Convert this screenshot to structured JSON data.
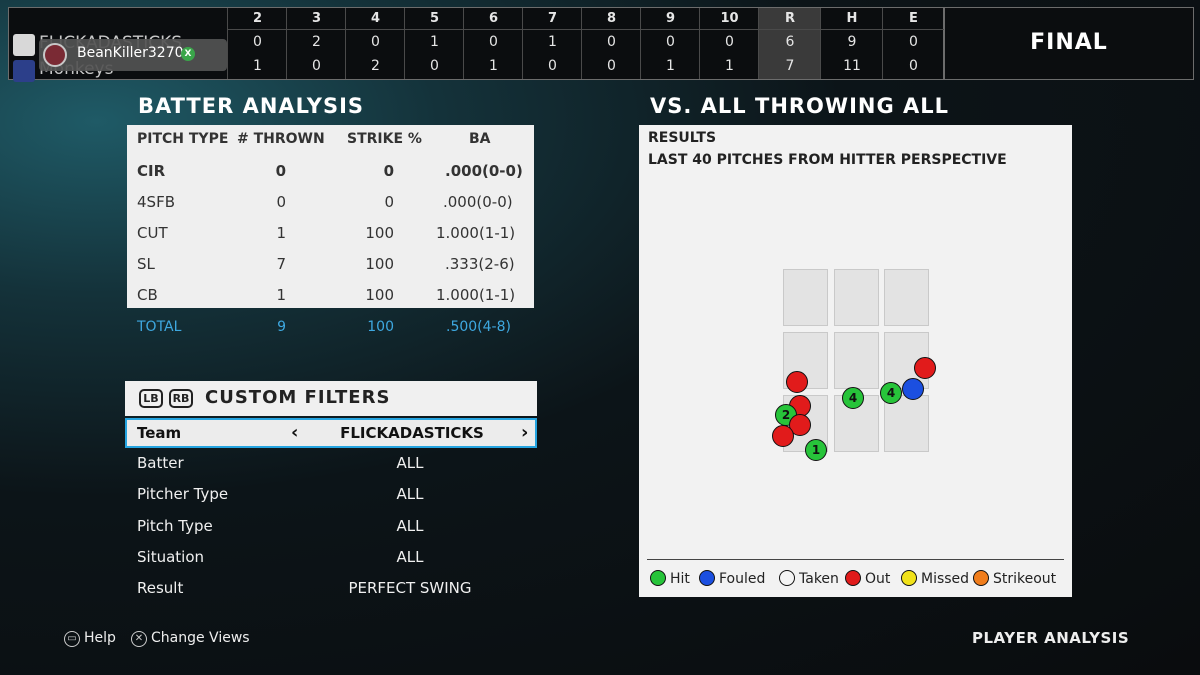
{
  "scoreboard": {
    "innings": [
      "2",
      "3",
      "4",
      "5",
      "6",
      "7",
      "8",
      "9",
      "10",
      "R",
      "H",
      "E"
    ],
    "away": {
      "name": "FLICKADASTICKS",
      "scores": [
        "0",
        "2",
        "0",
        "1",
        "0",
        "1",
        "0",
        "0",
        "0",
        "6",
        "9",
        "0"
      ]
    },
    "home": {
      "name": "Monkeys",
      "scores": [
        "1",
        "0",
        "2",
        "0",
        "1",
        "0",
        "0",
        "1",
        "1",
        "7",
        "11",
        "0"
      ]
    },
    "user": {
      "gamertag": "BeanKiller3270"
    },
    "status": "FINAL"
  },
  "batter_analysis": {
    "heading": "BATTER ANALYSIS",
    "columns": [
      "PITCH TYPE",
      "# THROWN",
      "STRIKE %",
      "BA"
    ],
    "rows": [
      {
        "type": "CIR",
        "thrown": "0",
        "strike": "0",
        "ba": ".000(0-0)"
      },
      {
        "type": "4SFB",
        "thrown": "0",
        "strike": "0",
        "ba": ".000(0-0)"
      },
      {
        "type": "CUT",
        "thrown": "1",
        "strike": "100",
        "ba": "1.000(1-1)"
      },
      {
        "type": "SL",
        "thrown": "7",
        "strike": "100",
        "ba": ".333(2-6)"
      },
      {
        "type": "CB",
        "thrown": "1",
        "strike": "100",
        "ba": "1.000(1-1)"
      }
    ],
    "total": {
      "type": "TOTAL",
      "thrown": "9",
      "strike": "100",
      "ba": ".500(4-8)"
    }
  },
  "filters": {
    "buttons": [
      "LB",
      "RB"
    ],
    "title": "CUSTOM FILTERS",
    "team": {
      "label": "Team",
      "value": "FLICKADASTICKS"
    },
    "rows": [
      {
        "label": "Batter",
        "value": "ALL"
      },
      {
        "label": "Pitcher Type",
        "value": "ALL"
      },
      {
        "label": "Pitch Type",
        "value": "ALL"
      },
      {
        "label": "Situation",
        "value": "ALL"
      },
      {
        "label": "Result",
        "value": "PERFECT SWING"
      }
    ]
  },
  "vs_panel": {
    "heading": "VS. ALL THROWING ALL",
    "title": "RESULTS",
    "subtitle": "LAST 40 PITCHES FROM HITTER PERSPECTIVE",
    "pitches": [
      {
        "result": "Out",
        "label": ""
      },
      {
        "result": "Out",
        "label": ""
      },
      {
        "result": "Hit",
        "label": "2"
      },
      {
        "result": "Out",
        "label": ""
      },
      {
        "result": "Out",
        "label": ""
      },
      {
        "result": "Hit",
        "label": "1"
      },
      {
        "result": "Hit",
        "label": "4"
      },
      {
        "result": "Hit",
        "label": "4"
      },
      {
        "result": "Fouled",
        "label": ""
      },
      {
        "result": "Out",
        "label": ""
      }
    ],
    "legend": [
      {
        "label": "Hit",
        "color": "#27c43a"
      },
      {
        "label": "Fouled",
        "color": "#1b4fe0"
      },
      {
        "label": "Taken",
        "color": "#f4f4f4"
      },
      {
        "label": "Out",
        "color": "#e11b1b"
      },
      {
        "label": "Missed",
        "color": "#f1e21a"
      },
      {
        "label": "Strikeout",
        "color": "#f07d1c"
      }
    ]
  },
  "footer": {
    "help": "Help",
    "change_views": "Change Views",
    "screen_title": "PLAYER ANALYSIS"
  }
}
